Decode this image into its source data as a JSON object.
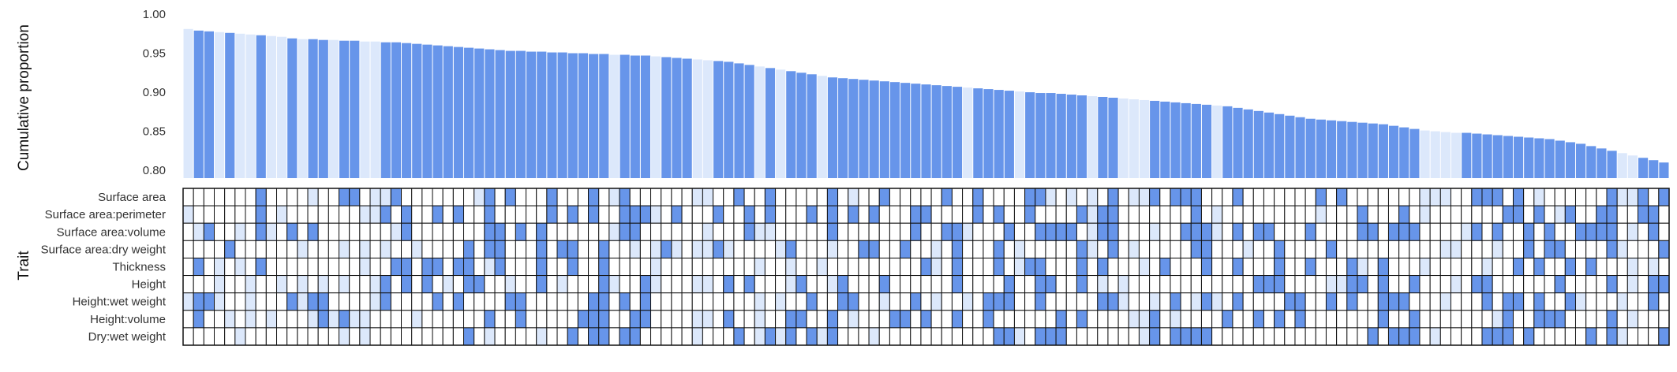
{
  "chart_data": {
    "type": "bar",
    "ylabel": "Cumulative proportion",
    "trait_axis_label": "Trait",
    "ylim": [
      0.79,
      1.0
    ],
    "yticks": [
      "0.80",
      "0.85",
      "0.90",
      "0.95",
      "1.00"
    ],
    "traits": [
      "Surface area",
      "Surface area:perimeter",
      "Surface area:volume",
      "Surface area:dry weight",
      "Thickness",
      "Height",
      "Height:wet weight",
      "Height:volume",
      "Dry:wet weight"
    ],
    "values": [
      0.981,
      0.979,
      0.978,
      0.977,
      0.976,
      0.975,
      0.974,
      0.973,
      0.972,
      0.971,
      0.969,
      0.968,
      0.968,
      0.967,
      0.967,
      0.966,
      0.966,
      0.965,
      0.965,
      0.964,
      0.964,
      0.963,
      0.962,
      0.961,
      0.96,
      0.959,
      0.958,
      0.957,
      0.956,
      0.955,
      0.954,
      0.953,
      0.953,
      0.952,
      0.952,
      0.951,
      0.951,
      0.95,
      0.95,
      0.949,
      0.949,
      0.948,
      0.948,
      0.947,
      0.947,
      0.946,
      0.945,
      0.944,
      0.943,
      0.942,
      0.941,
      0.94,
      0.939,
      0.937,
      0.935,
      0.933,
      0.931,
      0.929,
      0.927,
      0.925,
      0.923,
      0.921,
      0.919,
      0.918,
      0.917,
      0.916,
      0.915,
      0.914,
      0.913,
      0.912,
      0.911,
      0.91,
      0.909,
      0.908,
      0.907,
      0.906,
      0.905,
      0.904,
      0.903,
      0.902,
      0.901,
      0.9,
      0.899,
      0.899,
      0.898,
      0.897,
      0.896,
      0.895,
      0.894,
      0.893,
      0.892,
      0.891,
      0.89,
      0.889,
      0.888,
      0.887,
      0.886,
      0.885,
      0.884,
      0.883,
      0.882,
      0.88,
      0.878,
      0.876,
      0.874,
      0.872,
      0.87,
      0.868,
      0.866,
      0.865,
      0.864,
      0.863,
      0.862,
      0.861,
      0.86,
      0.859,
      0.857,
      0.855,
      0.853,
      0.851,
      0.85,
      0.849,
      0.848,
      0.848,
      0.847,
      0.846,
      0.845,
      0.844,
      0.843,
      0.842,
      0.841,
      0.84,
      0.838,
      0.836,
      0.834,
      0.831,
      0.828,
      0.825,
      0.822,
      0.819,
      0.816,
      0.813,
      0.81
    ],
    "highlight": [
      0,
      1,
      1,
      0,
      1,
      0,
      0,
      1,
      0,
      0,
      1,
      0,
      1,
      1,
      0,
      1,
      1,
      0,
      0,
      1,
      1,
      1,
      1,
      1,
      1,
      1,
      1,
      1,
      1,
      1,
      1,
      1,
      1,
      1,
      1,
      1,
      1,
      1,
      1,
      1,
      1,
      0,
      1,
      1,
      1,
      0,
      1,
      1,
      1,
      0,
      0,
      1,
      1,
      1,
      1,
      0,
      1,
      0,
      1,
      1,
      1,
      0,
      1,
      1,
      1,
      1,
      1,
      1,
      1,
      1,
      1,
      1,
      1,
      1,
      1,
      0,
      1,
      1,
      1,
      1,
      0,
      1,
      1,
      1,
      1,
      1,
      1,
      0,
      1,
      1,
      0,
      0,
      0,
      1,
      1,
      1,
      1,
      1,
      1,
      0,
      1,
      1,
      1,
      1,
      1,
      1,
      1,
      1,
      1,
      1,
      1,
      1,
      1,
      1,
      1,
      1,
      1,
      1,
      1,
      0,
      0,
      0,
      0,
      1,
      1,
      1,
      1,
      1,
      1,
      1,
      1,
      1,
      1,
      1,
      1,
      1,
      1,
      1,
      0,
      0,
      1,
      1,
      1,
      1,
      1
    ]
  }
}
